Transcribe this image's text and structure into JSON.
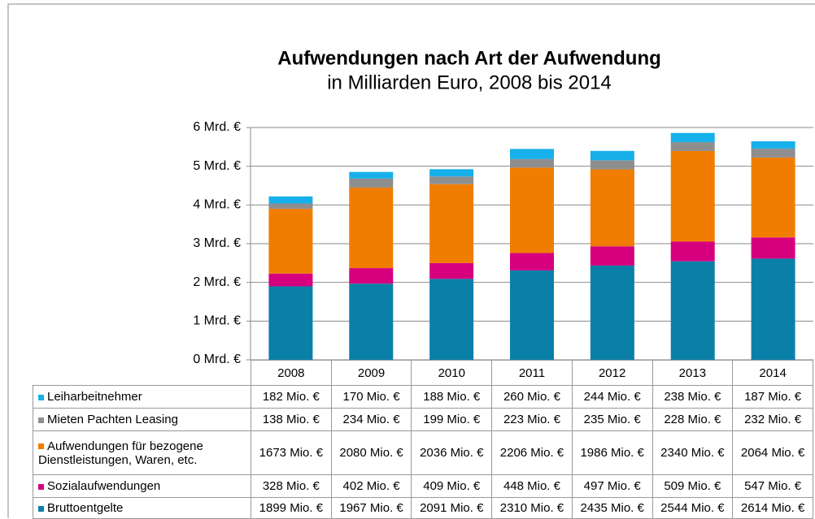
{
  "chart_data": {
    "type": "bar",
    "stacked": true,
    "title": "Aufwendungen nach Art der Aufwendung",
    "subtitle": "in Milliarden Euro, 2008 bis 2014",
    "categories": [
      "2008",
      "2009",
      "2010",
      "2011",
      "2012",
      "2013",
      "2014"
    ],
    "ylim": [
      0,
      6
    ],
    "yticks": [
      {
        "value": 0,
        "label": "0 Mrd. €"
      },
      {
        "value": 1,
        "label": "1 Mrd. €"
      },
      {
        "value": 2,
        "label": "2 Mrd. €"
      },
      {
        "value": 3,
        "label": "3 Mrd. €"
      },
      {
        "value": 4,
        "label": "4 Mrd. €"
      },
      {
        "value": 5,
        "label": "5 Mrd. €"
      },
      {
        "value": 6,
        "label": "6 Mrd. €"
      }
    ],
    "grid": true,
    "series": [
      {
        "name": "Leiharbeitnehmer",
        "color": "#17b0ea",
        "values": [
          0.182,
          0.17,
          0.188,
          0.26,
          0.244,
          0.238,
          0.187
        ],
        "value_labels": [
          "182 Mio. €",
          "170 Mio. €",
          "188 Mio. €",
          "260 Mio. €",
          "244 Mio. €",
          "238 Mio. €",
          "187 Mio. €"
        ]
      },
      {
        "name": "Mieten Pachten Leasing",
        "color": "#8e8e8e",
        "values": [
          0.138,
          0.234,
          0.199,
          0.223,
          0.235,
          0.228,
          0.232
        ],
        "value_labels": [
          "138 Mio. €",
          "234 Mio. €",
          "199 Mio. €",
          "223 Mio. €",
          "235 Mio. €",
          "228 Mio. €",
          "232 Mio. €"
        ]
      },
      {
        "name": "Aufwendungen für bezogene Dienstleistungen, Waren, etc.",
        "color": "#f07d00",
        "values": [
          1.673,
          2.08,
          2.036,
          2.206,
          1.986,
          2.34,
          2.064
        ],
        "value_labels": [
          "1673 Mio. €",
          "2080 Mio. €",
          "2036 Mio. €",
          "2206 Mio. €",
          "1986 Mio. €",
          "2340 Mio. €",
          "2064 Mio. €"
        ]
      },
      {
        "name": "Sozialaufwendungen",
        "color": "#d6007f",
        "values": [
          0.328,
          0.402,
          0.409,
          0.448,
          0.497,
          0.509,
          0.547
        ],
        "value_labels": [
          "328 Mio. €",
          "402 Mio. €",
          "409 Mio. €",
          "448 Mio. €",
          "497 Mio. €",
          "509 Mio. €",
          "547 Mio. €"
        ]
      },
      {
        "name": "Bruttoentgelte",
        "color": "#0a80a8",
        "values": [
          1.899,
          1.967,
          2.091,
          2.31,
          2.435,
          2.544,
          2.614
        ],
        "value_labels": [
          "1899 Mio. €",
          "1967 Mio. €",
          "2091 Mio. €",
          "2310 Mio. €",
          "2435 Mio. €",
          "2544 Mio. €",
          "2614 Mio. €"
        ]
      }
    ]
  }
}
